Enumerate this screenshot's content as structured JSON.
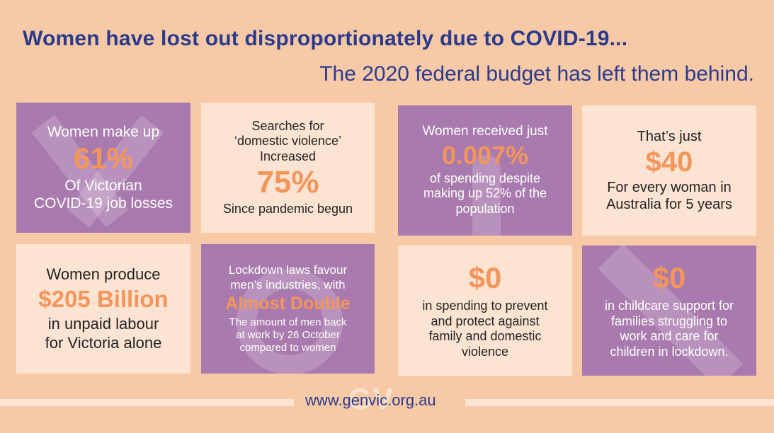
{
  "header": {
    "title": "Women have lost out disproportionately due to COVID-19...",
    "subtitle": "The 2020 federal budget has left them behind."
  },
  "cards": [
    {
      "lines": [
        "Women make up"
      ],
      "big": "61%",
      "after": [
        "Of Victorian",
        "COVID-19 job losses"
      ]
    },
    {
      "lines": [
        "Searches for",
        "‘domestic violence’",
        "Increased"
      ],
      "big": "75%",
      "after": [
        "Since pandemic begun"
      ]
    },
    {
      "lines": [
        "Women received just"
      ],
      "big": "0.007%",
      "after": [
        "of spending despite",
        "making up 52% of the",
        "population"
      ]
    },
    {
      "lines": [
        "That’s just"
      ],
      "big": "$40",
      "after": [
        "For every woman in",
        "Australia for 5 years"
      ]
    },
    {
      "lines": [
        "Women produce"
      ],
      "big": "$205 Billion",
      "after": [
        "in unpaid labour",
        "for Victoria alone"
      ]
    },
    {
      "lines": [
        "Lockdown laws favour",
        "men’s industries, with"
      ],
      "big": "Almost Double",
      "after": [
        "The amount of men back",
        "at work by 26 October",
        "compared to women"
      ]
    },
    {
      "lines": [],
      "big": "$0",
      "after": [
        "in spending to prevent",
        "and protect against",
        "family and domestic",
        "violence"
      ]
    },
    {
      "lines": [],
      "big": "$0",
      "after": [
        "in childcare support for",
        "families struggling to",
        "work and care for",
        "children in lockdown."
      ]
    }
  ],
  "footer": {
    "url": "www.genvic.org.au",
    "watermark": "GV"
  },
  "colors": {
    "background": "#f7c9a6",
    "navy": "#2b3b8c",
    "purple": "#a97aae",
    "light": "#fde4d2",
    "orange": "#f4955a"
  }
}
